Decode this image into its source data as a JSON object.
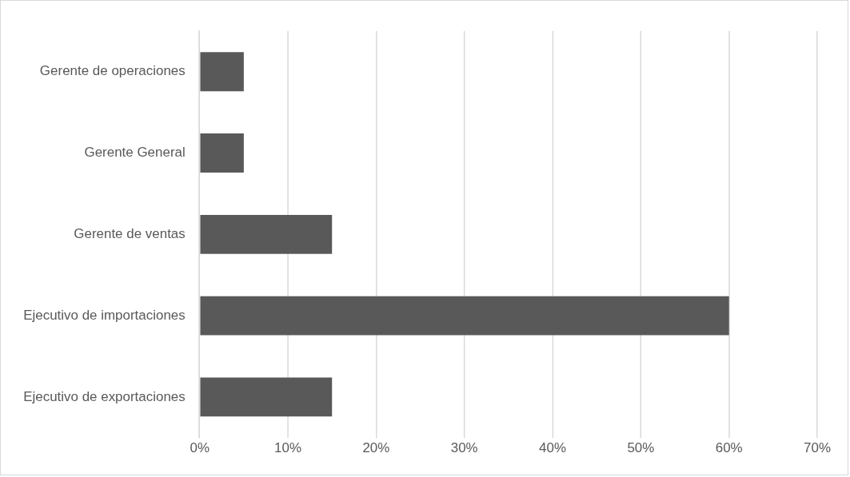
{
  "chart_data": {
    "type": "bar",
    "orientation": "horizontal",
    "categories": [
      "Gerente de operaciones",
      "Gerente General",
      "Gerente de ventas",
      "Ejecutivo de importaciones",
      "Ejecutivo de exportaciones"
    ],
    "values": [
      5,
      5,
      15,
      60,
      15
    ],
    "color": "#595959",
    "xlim": [
      0,
      70
    ],
    "xticks": [
      {
        "value": 0,
        "label": "0%"
      },
      {
        "value": 10,
        "label": "10%"
      },
      {
        "value": 20,
        "label": "20%"
      },
      {
        "value": 30,
        "label": "30%"
      },
      {
        "value": 40,
        "label": "40%"
      },
      {
        "value": 50,
        "label": "50%"
      },
      {
        "value": 60,
        "label": "60%"
      },
      {
        "value": 70,
        "label": "70%"
      }
    ],
    "grid": "x",
    "legend": false
  }
}
